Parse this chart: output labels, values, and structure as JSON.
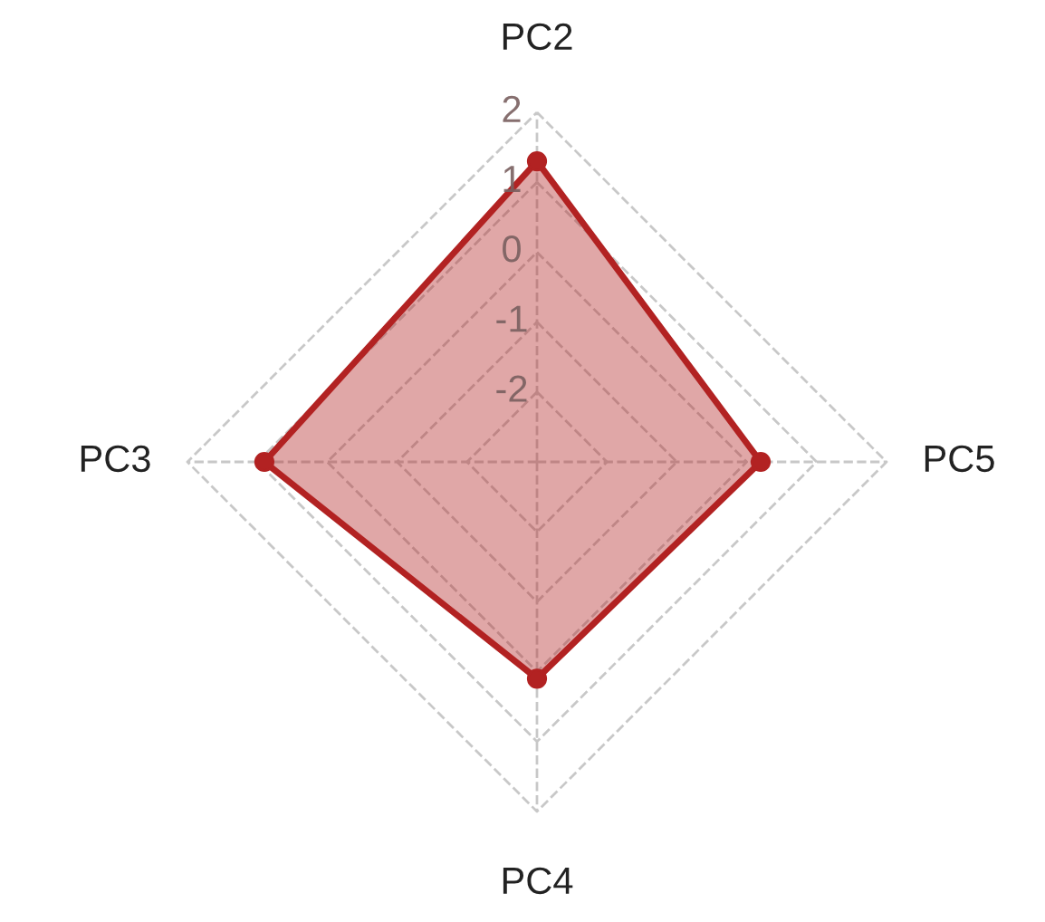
{
  "chart_data": {
    "type": "radar",
    "categories": [
      "PC2",
      "PC5",
      "PC4",
      "PC3"
    ],
    "series": [
      {
        "color": "#b22222",
        "values": [
          1.3,
          0.2,
          0.1,
          0.9
        ]
      }
    ],
    "ylim": [
      -3,
      2
    ],
    "yticks": [
      -2,
      -1,
      0,
      1,
      2
    ],
    "grid": true,
    "marker": "circle",
    "line_style": "solid"
  }
}
